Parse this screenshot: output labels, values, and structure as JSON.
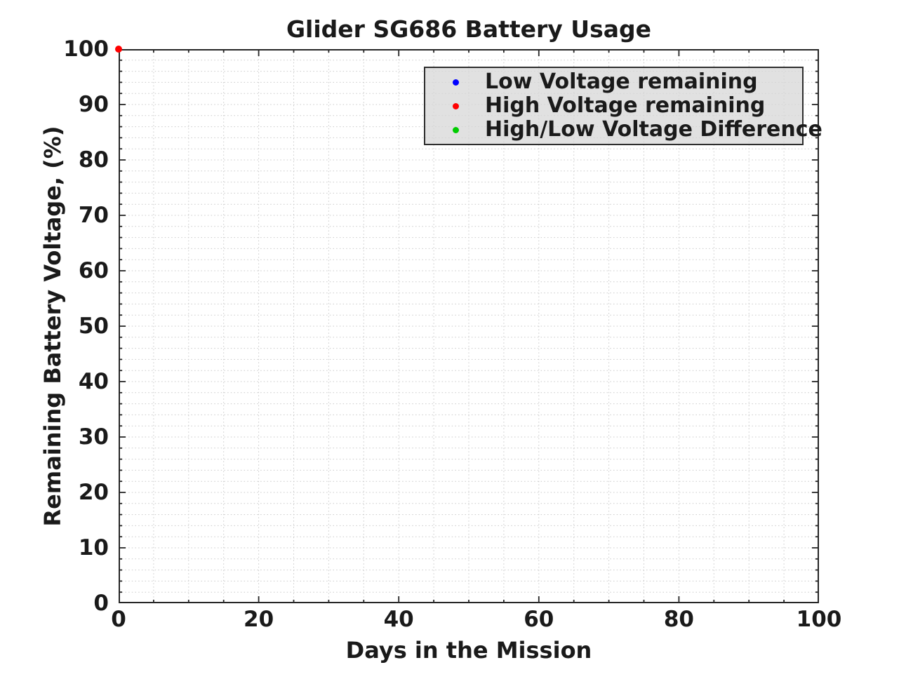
{
  "page": {
    "background": "#ffffff"
  },
  "chart_data": {
    "type": "scatter",
    "title": "Glider SG686 Battery Usage",
    "xlabel": "Days in the Mission",
    "ylabel": "Remaining Battery Voltage, (%)",
    "xlim": [
      0,
      100
    ],
    "ylim": [
      0,
      100
    ],
    "x_ticks": [
      0,
      20,
      40,
      60,
      80,
      100
    ],
    "y_ticks": [
      0,
      10,
      20,
      30,
      40,
      50,
      60,
      70,
      80,
      90,
      100
    ],
    "x_minor_step": 5,
    "y_minor_step": 2,
    "grid": {
      "visible": true,
      "style": "dotted",
      "color": "#c9c9c9"
    },
    "axis_color": "#262626",
    "text_color": "#1a1a1a",
    "legend": {
      "position": "upper-right",
      "background": "#e3e3e3",
      "border_color": "#2e2e2e"
    },
    "series": [
      {
        "name": "Low Voltage remaining",
        "color": "#0000ff",
        "marker": "dot",
        "points": []
      },
      {
        "name": "High Voltage remaining",
        "color": "#ff0000",
        "marker": "dot",
        "points": [
          [
            0,
            100
          ]
        ]
      },
      {
        "name": "High/Low Voltage Difference",
        "color": "#00cc00",
        "marker": "dot",
        "points": []
      }
    ]
  }
}
